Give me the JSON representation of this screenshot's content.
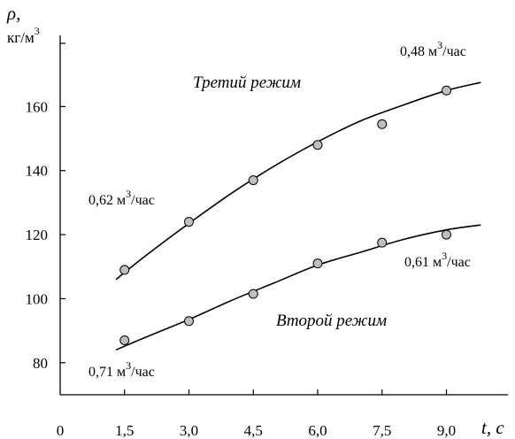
{
  "chart_data": {
    "type": "scatter",
    "title": "",
    "xlabel": "t, с",
    "ylabel": "ρ,",
    "ylabel_unit": "кг/м",
    "ylabel_unit_exp": "3",
    "xlim": [
      0,
      10
    ],
    "ylim": [
      70,
      180
    ],
    "x_ticks": [
      {
        "value": 0,
        "label": "0"
      },
      {
        "value": 1.5,
        "label": "1,5"
      },
      {
        "value": 3.0,
        "label": "3,0"
      },
      {
        "value": 4.5,
        "label": "4,5"
      },
      {
        "value": 6.0,
        "label": "6,0"
      },
      {
        "value": 7.5,
        "label": "7,5"
      },
      {
        "value": 9.0,
        "label": "9,0"
      }
    ],
    "y_ticks": [
      {
        "value": 80,
        "label": "80"
      },
      {
        "value": 100,
        "label": "100"
      },
      {
        "value": 120,
        "label": "120"
      },
      {
        "value": 140,
        "label": "140"
      },
      {
        "value": 160,
        "label": "160"
      }
    ],
    "grid": false,
    "series": [
      {
        "name": "Третий режим",
        "color": "#000000",
        "marker_color": "#bfbfbf",
        "points": [
          {
            "x": 1.5,
            "y": 109
          },
          {
            "x": 3.0,
            "y": 124
          },
          {
            "x": 4.5,
            "y": 137
          },
          {
            "x": 6.0,
            "y": 148
          },
          {
            "x": 7.5,
            "y": 154.5
          },
          {
            "x": 9.0,
            "y": 165
          }
        ],
        "fit_curve": {
          "x": [
            1.3,
            2.0,
            3.0,
            4.0,
            5.0,
            6.0,
            7.0,
            8.0,
            9.0,
            9.8
          ],
          "y": [
            106,
            113.5,
            123.5,
            133,
            141.5,
            149,
            155.5,
            160.5,
            165,
            167.5
          ]
        },
        "start_label": "0,62 м",
        "start_label_exp": "3",
        "start_label_unit": "/час",
        "end_label": "0,48 м",
        "end_label_exp": "3",
        "end_label_unit": "/час"
      },
      {
        "name": "Второй режим",
        "color": "#000000",
        "marker_color": "#bfbfbf",
        "points": [
          {
            "x": 1.5,
            "y": 87
          },
          {
            "x": 3.0,
            "y": 93
          },
          {
            "x": 4.5,
            "y": 101.5
          },
          {
            "x": 6.0,
            "y": 111
          },
          {
            "x": 7.5,
            "y": 117.5
          },
          {
            "x": 9.0,
            "y": 120
          }
        ],
        "fit_curve": {
          "x": [
            1.3,
            2.0,
            3.0,
            4.0,
            5.0,
            6.0,
            7.0,
            8.0,
            9.0,
            9.8
          ],
          "y": [
            84,
            88,
            93.5,
            99.5,
            105,
            110.5,
            114.5,
            118.5,
            121.5,
            123
          ]
        },
        "start_label": "0,71 м",
        "start_label_exp": "3",
        "start_label_unit": "/час",
        "end_label": "0,61 м",
        "end_label_exp": "3",
        "end_label_unit": "/час"
      }
    ]
  }
}
